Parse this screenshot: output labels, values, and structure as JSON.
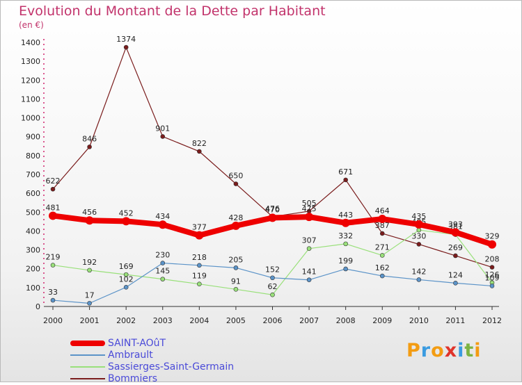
{
  "title": "Evolution du Montant de la Dette par Habitant",
  "unit": "(en €)",
  "logo": {
    "chars": [
      "P",
      "r",
      "o",
      "x",
      "i",
      "t",
      "i"
    ],
    "colors": [
      "#f39c12",
      "#3a9be0",
      "#f39c12",
      "#e0342b",
      "#3a9be0",
      "#7cb342",
      "#f39c12"
    ]
  },
  "chart_data": {
    "type": "line",
    "title": "Evolution du Montant de la Dette par Habitant",
    "ylabel": "(en €)",
    "xlabel": "",
    "ylim": [
      0,
      1400
    ],
    "yticks": [
      0,
      100,
      200,
      300,
      400,
      500,
      600,
      700,
      800,
      900,
      1000,
      1100,
      1200,
      1300,
      1400
    ],
    "x": [
      "2000",
      "2001",
      "2002",
      "2003",
      "2004",
      "2005",
      "2006",
      "2007",
      "2008",
      "2009",
      "2010",
      "2011",
      "2012"
    ],
    "grid": false,
    "legend_position": "bottom-left",
    "series": [
      {
        "name": "Bommiers",
        "color": "#7a1c1c",
        "width": 1.2,
        "values": [
          622,
          846,
          1374,
          901,
          822,
          650,
          476,
          505,
          671,
          387,
          330,
          269,
          208
        ]
      },
      {
        "name": "Sassierges-Saint-Germain",
        "color": "#99e07a",
        "width": 1.2,
        "values": [
          219,
          192,
          169,
          145,
          119,
          91,
          62,
          307,
          332,
          271,
          405,
          381,
          126
        ]
      },
      {
        "name": "Ambrault",
        "color": "#5b93c8",
        "width": 1.2,
        "values": [
          33,
          17,
          102,
          230,
          218,
          205,
          152,
          141,
          199,
          162,
          142,
          124,
          109
        ]
      },
      {
        "name": "SAINT-AOûT",
        "color": "#ee0000",
        "width": 8,
        "values": [
          481,
          456,
          452,
          434,
          377,
          428,
          470,
          475,
          443,
          464,
          435,
          393,
          329
        ]
      }
    ]
  },
  "legend": [
    {
      "name": "SAINT-AOûT",
      "color": "#ee0000",
      "height": 8
    },
    {
      "name": "Ambrault",
      "color": "#5b93c8",
      "height": 2
    },
    {
      "name": "Sassierges-Saint-Germain",
      "color": "#99e07a",
      "height": 2
    },
    {
      "name": "Bommiers",
      "color": "#7a1c1c",
      "height": 2
    }
  ]
}
